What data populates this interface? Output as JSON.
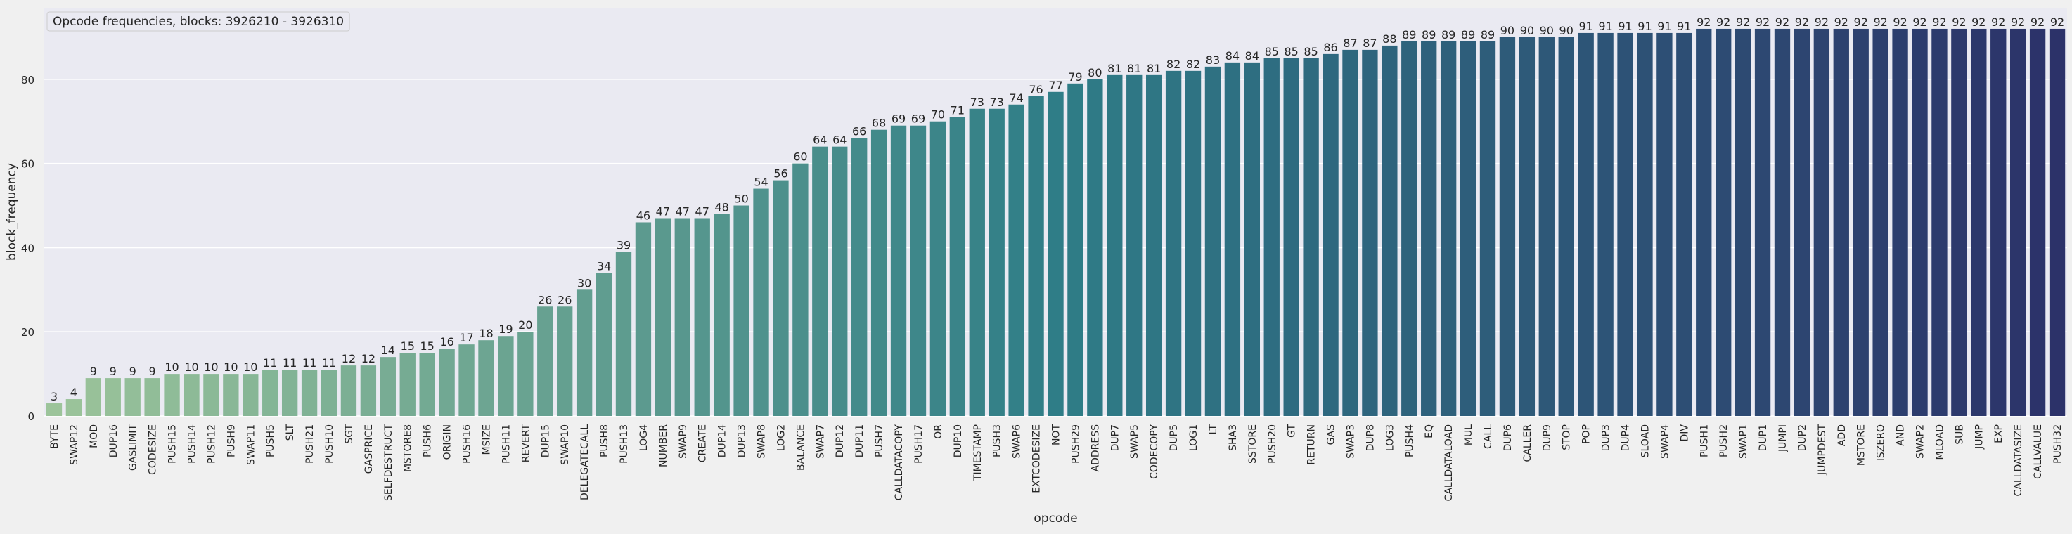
{
  "chart_data": {
    "type": "bar",
    "title": "",
    "legend": {
      "text": "Opcode frequencies, blocks: 3926210 - 3926310",
      "placement": "top-left"
    },
    "xlabel": "opcode",
    "ylabel": "block_frequency",
    "ylim": [
      0,
      97
    ],
    "yticks": [
      "0",
      "20",
      "40",
      "60",
      "80"
    ],
    "grid": "horizontal",
    "colors": {
      "plot_background": "#eaeaf2",
      "grid": "#ffffff",
      "gradient_start": "#9cc49a",
      "gradient_mid": "#2f7d87",
      "gradient_end": "#2c3269"
    },
    "categories": [
      "BYTE",
      "SWAP12",
      "MOD",
      "DUP16",
      "GASLIMIT",
      "CODESIZE",
      "PUSH15",
      "PUSH14",
      "PUSH12",
      "PUSH9",
      "SWAP11",
      "PUSH5",
      "SLT",
      "PUSH21",
      "PUSH10",
      "SGT",
      "GASPRICE",
      "SELFDESTRUCT",
      "MSTORE8",
      "PUSH6",
      "ORIGIN",
      "PUSH16",
      "MSIZE",
      "PUSH11",
      "REVERT",
      "DUP15",
      "SWAP10",
      "DELEGATECALL",
      "PUSH8",
      "PUSH13",
      "LOG4",
      "NUMBER",
      "SWAP9",
      "CREATE",
      "DUP14",
      "DUP13",
      "SWAP8",
      "LOG2",
      "BALANCE",
      "SWAP7",
      "DUP12",
      "DUP11",
      "PUSH7",
      "CALLDATACOPY",
      "PUSH17",
      "OR",
      "DUP10",
      "TIMESTAMP",
      "PUSH3",
      "SWAP6",
      "EXTCODESIZE",
      "NOT",
      "PUSH29",
      "ADDRESS",
      "DUP7",
      "SWAP5",
      "CODECOPY",
      "DUP5",
      "LOG1",
      "LT",
      "SHA3",
      "SSTORE",
      "PUSH20",
      "GT",
      "RETURN",
      "GAS",
      "SWAP3",
      "DUP8",
      "LOG3",
      "PUSH4",
      "EQ",
      "CALLDATALOAD",
      "MUL",
      "CALL",
      "DUP6",
      "CALLER",
      "DUP9",
      "STOP",
      "POP",
      "DUP3",
      "DUP4",
      "SLOAD",
      "SWAP4",
      "DIV",
      "PUSH1",
      "PUSH2",
      "SWAP1",
      "DUP1",
      "JUMPI",
      "DUP2",
      "JUMPDEST",
      "ADD",
      "MSTORE",
      "ISZERO",
      "AND",
      "SWAP2",
      "MLOAD",
      "SUB",
      "JUMP",
      "EXP",
      "CALLDATASIZE",
      "CALLVALUE",
      "PUSH32"
    ],
    "values": [
      3,
      4,
      9,
      9,
      9,
      9,
      10,
      10,
      10,
      10,
      10,
      11,
      11,
      11,
      11,
      12,
      12,
      14,
      15,
      15,
      16,
      17,
      18,
      19,
      20,
      26,
      26,
      30,
      34,
      39,
      46,
      47,
      47,
      47,
      48,
      50,
      54,
      56,
      60,
      64,
      64,
      66,
      68,
      69,
      69,
      70,
      71,
      73,
      73,
      74,
      76,
      77,
      79,
      80,
      81,
      81,
      81,
      82,
      82,
      83,
      84,
      84,
      85,
      85,
      85,
      86,
      87,
      87,
      88,
      89,
      89,
      89,
      89,
      89,
      90,
      90,
      90,
      90,
      91,
      91,
      91,
      91,
      91,
      91,
      92,
      92,
      92,
      92,
      92,
      92,
      92,
      92,
      92,
      92,
      92,
      92,
      92,
      92,
      92,
      92,
      92,
      92,
      92
    ]
  }
}
